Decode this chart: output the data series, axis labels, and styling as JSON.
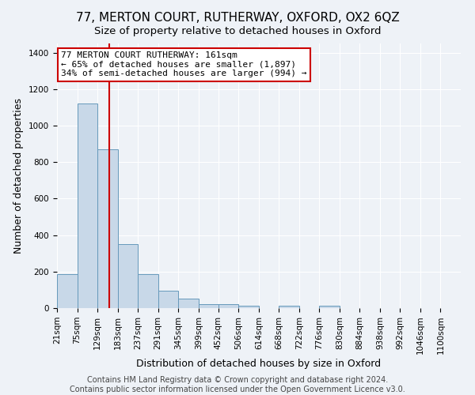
{
  "title": "77, MERTON COURT, RUTHERWAY, OXFORD, OX2 6QZ",
  "subtitle": "Size of property relative to detached houses in Oxford",
  "xlabel": "Distribution of detached houses by size in Oxford",
  "ylabel": "Number of detached properties",
  "footer_line1": "Contains HM Land Registry data © Crown copyright and database right 2024.",
  "footer_line2": "Contains public sector information licensed under the Open Government Licence v3.0.",
  "bin_labels": [
    "21sqm",
    "75sqm",
    "129sqm",
    "183sqm",
    "237sqm",
    "291sqm",
    "345sqm",
    "399sqm",
    "452sqm",
    "506sqm",
    "614sqm",
    "668sqm",
    "722sqm",
    "776sqm",
    "830sqm",
    "884sqm",
    "938sqm",
    "992sqm",
    "1046sqm",
    "1100sqm"
  ],
  "bin_edges": [
    21,
    75,
    129,
    183,
    237,
    291,
    345,
    399,
    452,
    506,
    560,
    614,
    668,
    722,
    776,
    830,
    884,
    938,
    992,
    1046,
    1100
  ],
  "values": [
    188,
    1120,
    868,
    352,
    188,
    96,
    52,
    22,
    20,
    14,
    0,
    12,
    0,
    14,
    0,
    0,
    0,
    0,
    0,
    0
  ],
  "bar_color": "#c8d8e8",
  "bar_edge_color": "#6699bb",
  "property_size": 161,
  "vline_color": "#cc0000",
  "annotation_text": "77 MERTON COURT RUTHERWAY: 161sqm\n← 65% of detached houses are smaller (1,897)\n34% of semi-detached houses are larger (994) →",
  "annotation_box_color": "#ffffff",
  "annotation_box_edge_color": "#cc0000",
  "ylim": [
    0,
    1450
  ],
  "background_color": "#eef2f7",
  "grid_color": "#ffffff",
  "title_fontsize": 11,
  "subtitle_fontsize": 9.5,
  "axis_label_fontsize": 9,
  "tick_fontsize": 7.5,
  "annotation_fontsize": 8,
  "footer_fontsize": 7
}
